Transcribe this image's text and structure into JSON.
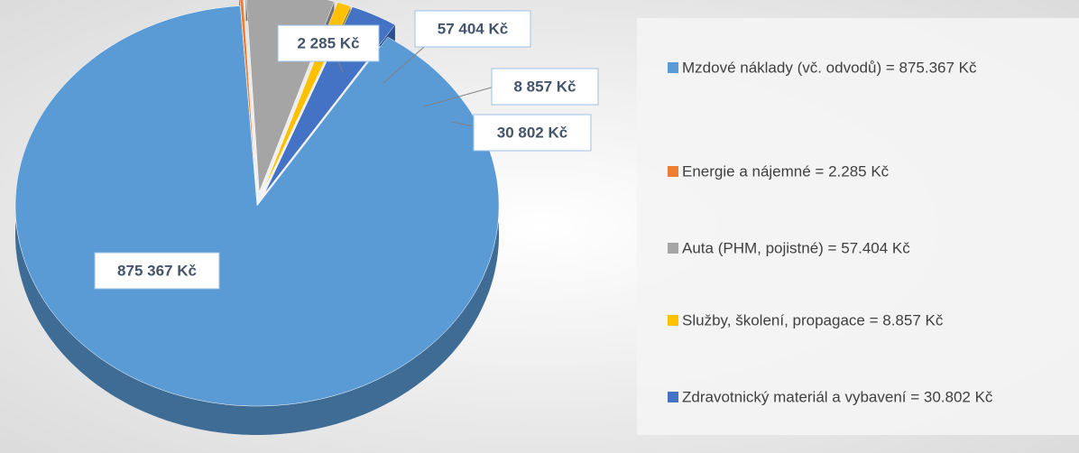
{
  "chart_data": {
    "type": "pie3d",
    "categories": [
      "Mzdové náklady (vč. odvodů) = 875.367 Kč",
      "Energie a nájemné = 2.285 Kč",
      "Auta (PHM, pojistné) = 57.404 Kč",
      "Služby, školení, propagace = 8.857 Kč",
      "Zdravotnický materiál a vybavení = 30.802 Kč"
    ],
    "values": [
      875367,
      2285,
      57404,
      8857,
      30802
    ],
    "value_labels": [
      "875 367 Kč",
      "2 285 Kč",
      "57 404 Kč",
      "8 857 Kč",
      "30 802 Kč"
    ],
    "colors": [
      "#5b9bd5",
      "#ed7d31",
      "#a5a5a5",
      "#ffc000",
      "#4472c4"
    ],
    "legend": "right"
  }
}
